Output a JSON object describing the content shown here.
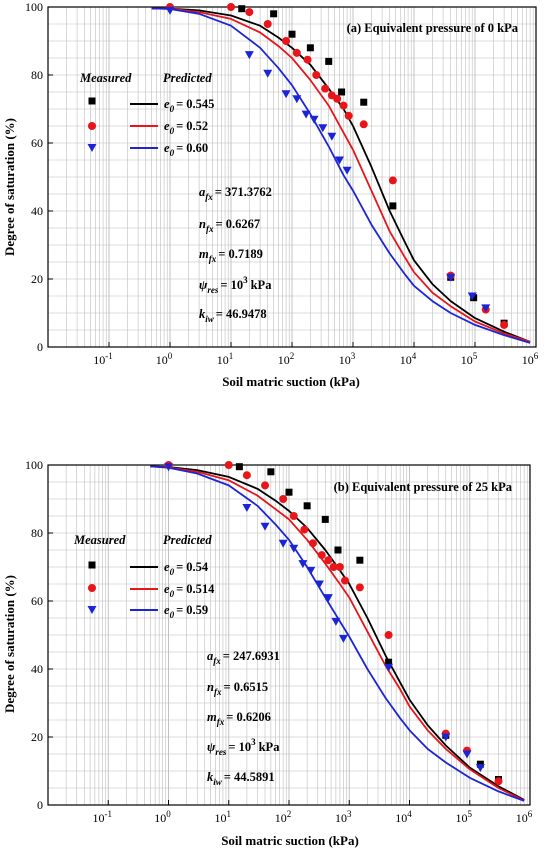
{
  "colors": {
    "black": "#000000",
    "red": "#e8151b",
    "blue": "#1c25d6",
    "grid": "#bdbdbd"
  },
  "axis_labels": {
    "x": "Soil matric suction (kPa)",
    "y": "Degree of saturation (%)"
  },
  "chart_data": [
    {
      "type": "scatter",
      "title": "(a) Equivalent pressure of 0 kPa",
      "xlabel": "Soil matric suction (kPa)",
      "ylabel": "Degree of saturation (%)",
      "x_scale": "log",
      "xlim": [
        0.01,
        1000000
      ],
      "ylim": [
        0,
        100
      ],
      "x_ticks": [
        "10",
        "-1",
        "10",
        "0",
        "10",
        "1",
        "10",
        "2",
        "10",
        "3",
        "10",
        "4",
        "10",
        "5",
        "10",
        "6"
      ],
      "y_ticks": [
        "0",
        "20",
        "40",
        "60",
        "80",
        "100"
      ],
      "legend_headers": [
        "Measured",
        "Predicted"
      ],
      "legend_symbol": "e",
      "legend_sub": "0",
      "legend": [
        "= 0.545",
        "= 0.52",
        "= 0.60"
      ],
      "parameters": {
        "a_sym": "a",
        "a_sub": "fx",
        "a_val": "= 371.3762",
        "n_sym": "n",
        "n_sub": "fx",
        "n_val": "= 0.6267",
        "m_sym": "m",
        "m_sub": "fx",
        "m_val": "= 0.7189",
        "psi_sym": "ψ",
        "psi_sub": "res",
        "psi_val": "= 10",
        "psi_exp": "3",
        "psi_unit": "kPa",
        "k_sym": "k",
        "k_sub": "iw",
        "k_val": "= 46.9478"
      },
      "grid": true,
      "series": [
        {
          "name": "e0 = 0.545",
          "color": "black",
          "marker": "square",
          "measured": [
            [
              15,
              99.5
            ],
            [
              50,
              98
            ],
            [
              100,
              92
            ],
            [
              200,
              88
            ],
            [
              400,
              84
            ],
            [
              650,
              75
            ],
            [
              1500,
              72
            ],
            [
              4500,
              41.5
            ],
            [
              40000,
              20.5
            ],
            [
              95000,
              14.5
            ],
            [
              300000,
              7
            ]
          ],
          "predicted": [
            [
              0.5,
              99.6
            ],
            [
              1,
              99.5
            ],
            [
              3,
              99
            ],
            [
              10,
              97.5
            ],
            [
              30,
              94.5
            ],
            [
              60,
              91
            ],
            [
              100,
              88
            ],
            [
              200,
              83
            ],
            [
              400,
              76
            ],
            [
              700,
              70
            ],
            [
              1000,
              65
            ],
            [
              2000,
              53
            ],
            [
              4000,
              40
            ],
            [
              7000,
              31
            ],
            [
              10000,
              25.5
            ],
            [
              20000,
              18.5
            ],
            [
              40000,
              13.5
            ],
            [
              100000,
              8.5
            ],
            [
              300000,
              4.5
            ],
            [
              800000,
              1.5
            ]
          ]
        },
        {
          "name": "e0 = 0.52",
          "color": "red",
          "marker": "circle",
          "measured": [
            [
              1,
              100
            ],
            [
              10,
              100
            ],
            [
              20,
              98.5
            ],
            [
              40,
              95
            ],
            [
              80,
              90
            ],
            [
              120,
              86.5
            ],
            [
              180,
              84.5
            ],
            [
              250,
              80
            ],
            [
              350,
              76
            ],
            [
              450,
              74
            ],
            [
              550,
              73
            ],
            [
              700,
              71
            ],
            [
              850,
              68
            ],
            [
              1500,
              65.5
            ],
            [
              4500,
              49
            ],
            [
              40000,
              21
            ],
            [
              150000,
              11
            ],
            [
              300000,
              6.5
            ]
          ],
          "predicted": [
            [
              0.5,
              99.6
            ],
            [
              1,
              99.5
            ],
            [
              3,
              98.5
            ],
            [
              10,
              96.5
            ],
            [
              30,
              92.5
            ],
            [
              60,
              88.5
            ],
            [
              100,
              85
            ],
            [
              200,
              78.5
            ],
            [
              400,
              71
            ],
            [
              700,
              63
            ],
            [
              1000,
              58
            ],
            [
              2000,
              46
            ],
            [
              4000,
              34
            ],
            [
              7000,
              26.5
            ],
            [
              10000,
              22
            ],
            [
              20000,
              16
            ],
            [
              40000,
              12
            ],
            [
              100000,
              7.5
            ],
            [
              300000,
              4
            ],
            [
              800000,
              1.5
            ]
          ]
        },
        {
          "name": "e0 = 0.60",
          "color": "blue",
          "marker": "triangle",
          "measured": [
            [
              1,
              99
            ],
            [
              20,
              86
            ],
            [
              40,
              80.5
            ],
            [
              80,
              74.5
            ],
            [
              120,
              73
            ],
            [
              170,
              68.5
            ],
            [
              230,
              67
            ],
            [
              320,
              64.5
            ],
            [
              450,
              62
            ],
            [
              600,
              55
            ],
            [
              800,
              52
            ],
            [
              40000,
              20.5
            ],
            [
              90000,
              15
            ],
            [
              150000,
              11.5
            ]
          ],
          "predicted": [
            [
              0.5,
              99.6
            ],
            [
              1,
              99.4
            ],
            [
              3,
              98
            ],
            [
              10,
              94.5
            ],
            [
              30,
              88
            ],
            [
              60,
              82
            ],
            [
              100,
              77
            ],
            [
              200,
              68.5
            ],
            [
              400,
              59
            ],
            [
              700,
              50.5
            ],
            [
              1000,
              46
            ],
            [
              2000,
              36
            ],
            [
              4000,
              27.5
            ],
            [
              7000,
              21.5
            ],
            [
              10000,
              18
            ],
            [
              20000,
              13.5
            ],
            [
              40000,
              10
            ],
            [
              100000,
              6.5
            ],
            [
              300000,
              3.5
            ],
            [
              800000,
              1.2
            ]
          ]
        }
      ]
    },
    {
      "type": "scatter",
      "title": "(b) Equivalent pressure of 25 kPa",
      "xlabel": "Soil matric suction (kPa)",
      "ylabel": "Degree of saturation (%)",
      "x_scale": "log",
      "xlim": [
        0.01,
        1000000
      ],
      "ylim": [
        0,
        100
      ],
      "x_ticks": [
        "10",
        "-1",
        "10",
        "0",
        "10",
        "1",
        "10",
        "2",
        "10",
        "3",
        "10",
        "4",
        "10",
        "5",
        "10",
        "6"
      ],
      "y_ticks": [
        "0",
        "20",
        "40",
        "60",
        "80",
        "100"
      ],
      "legend_headers": [
        "Measured",
        "Predicted"
      ],
      "legend_symbol": "e",
      "legend_sub": "0",
      "legend": [
        "= 0.54",
        "= 0.514",
        "= 0.59"
      ],
      "parameters": {
        "a_sym": "a",
        "a_sub": "fx",
        "a_val": "= 247.6931",
        "n_sym": "n",
        "n_sub": "fx",
        "n_val": "= 0.6515",
        "m_sym": "m",
        "m_sub": "fx",
        "m_val": "= 0.6206",
        "psi_sym": "ψ",
        "psi_sub": "res",
        "psi_val": "= 10",
        "psi_exp": "3",
        "psi_unit": "kPa",
        "k_sym": "k",
        "k_sub": "iw",
        "k_val": "= 44.5891"
      },
      "grid": true,
      "series": [
        {
          "name": "e0 = 0.54",
          "color": "black",
          "marker": "square",
          "measured": [
            [
              15,
              99.5
            ],
            [
              50,
              98
            ],
            [
              100,
              92
            ],
            [
              200,
              88
            ],
            [
              400,
              84
            ],
            [
              650,
              75
            ],
            [
              1500,
              72
            ],
            [
              4500,
              42
            ],
            [
              40000,
              20.5
            ],
            [
              150000,
              12
            ],
            [
              300000,
              7.5
            ]
          ],
          "predicted": [
            [
              0.5,
              99.6
            ],
            [
              1,
              99.4
            ],
            [
              3,
              98.5
            ],
            [
              10,
              96.5
            ],
            [
              30,
              93
            ],
            [
              60,
              89.5
            ],
            [
              100,
              86.5
            ],
            [
              200,
              81.5
            ],
            [
              400,
              75
            ],
            [
              700,
              69
            ],
            [
              1000,
              65
            ],
            [
              2000,
              55
            ],
            [
              4000,
              44
            ],
            [
              7000,
              36
            ],
            [
              10000,
              31
            ],
            [
              20000,
              23.5
            ],
            [
              40000,
              17.5
            ],
            [
              100000,
              11
            ],
            [
              300000,
              5.5
            ],
            [
              800000,
              1.5
            ]
          ]
        },
        {
          "name": "e0 = 0.514",
          "color": "red",
          "marker": "circle",
          "measured": [
            [
              1,
              100
            ],
            [
              10,
              100
            ],
            [
              20,
              97
            ],
            [
              40,
              94
            ],
            [
              80,
              90
            ],
            [
              120,
              85
            ],
            [
              180,
              81
            ],
            [
              250,
              77
            ],
            [
              350,
              73.5
            ],
            [
              450,
              72
            ],
            [
              550,
              70
            ],
            [
              700,
              70
            ],
            [
              850,
              66
            ],
            [
              1500,
              64
            ],
            [
              4500,
              50
            ],
            [
              40000,
              21
            ],
            [
              90000,
              16
            ],
            [
              300000,
              7
            ]
          ],
          "predicted": [
            [
              0.5,
              99.6
            ],
            [
              1,
              99.3
            ],
            [
              3,
              98
            ],
            [
              10,
              95.5
            ],
            [
              30,
              91
            ],
            [
              60,
              87
            ],
            [
              100,
              84
            ],
            [
              200,
              78
            ],
            [
              400,
              71
            ],
            [
              700,
              65
            ],
            [
              1000,
              61
            ],
            [
              2000,
              51
            ],
            [
              4000,
              41
            ],
            [
              7000,
              34
            ],
            [
              10000,
              29
            ],
            [
              20000,
              22
            ],
            [
              40000,
              16.5
            ],
            [
              100000,
              10.5
            ],
            [
              300000,
              5
            ],
            [
              800000,
              1.3
            ]
          ]
        },
        {
          "name": "e0 = 0.59",
          "color": "blue",
          "marker": "triangle",
          "measured": [
            [
              1,
              99.5
            ],
            [
              20,
              87.5
            ],
            [
              40,
              82
            ],
            [
              80,
              77
            ],
            [
              120,
              75.5
            ],
            [
              170,
              71
            ],
            [
              230,
              69
            ],
            [
              320,
              65
            ],
            [
              450,
              61
            ],
            [
              600,
              54
            ],
            [
              800,
              49
            ],
            [
              4500,
              40.5
            ],
            [
              40000,
              20
            ],
            [
              90000,
              15
            ],
            [
              150000,
              11
            ]
          ],
          "predicted": [
            [
              0.5,
              99.6
            ],
            [
              1,
              99.2
            ],
            [
              3,
              97.5
            ],
            [
              10,
              94
            ],
            [
              30,
              88
            ],
            [
              60,
              82.5
            ],
            [
              100,
              78
            ],
            [
              200,
              70
            ],
            [
              400,
              61
            ],
            [
              700,
              54
            ],
            [
              1000,
              49.5
            ],
            [
              2000,
              40
            ],
            [
              4000,
              31.5
            ],
            [
              7000,
              25.5
            ],
            [
              10000,
              22
            ],
            [
              20000,
              16.5
            ],
            [
              40000,
              12.5
            ],
            [
              100000,
              8
            ],
            [
              300000,
              4
            ],
            [
              800000,
              1.2
            ]
          ]
        }
      ]
    }
  ]
}
